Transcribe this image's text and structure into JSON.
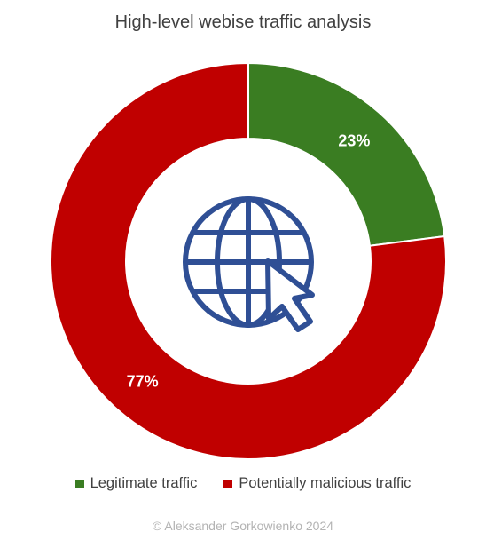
{
  "chart_data": {
    "type": "pie",
    "title": "High-level webise traffic analysis",
    "categories": [
      "Legitimate traffic",
      "Potentially malicious traffic"
    ],
    "values": [
      23,
      77
    ],
    "value_labels": [
      "23%",
      "77%"
    ],
    "colors": [
      "#3a7d22",
      "#c00000"
    ],
    "donut": true,
    "legend": "bottom",
    "center_icon": "globe-cursor-icon"
  },
  "legend": {
    "items": [
      {
        "label": "Legitimate traffic",
        "color": "#3a7d22"
      },
      {
        "label": "Potentially malicious traffic",
        "color": "#c00000"
      }
    ]
  },
  "footer": {
    "copyright": "© Aleksander Gorkowienko 2024"
  },
  "icon_color": "#2f4f95"
}
